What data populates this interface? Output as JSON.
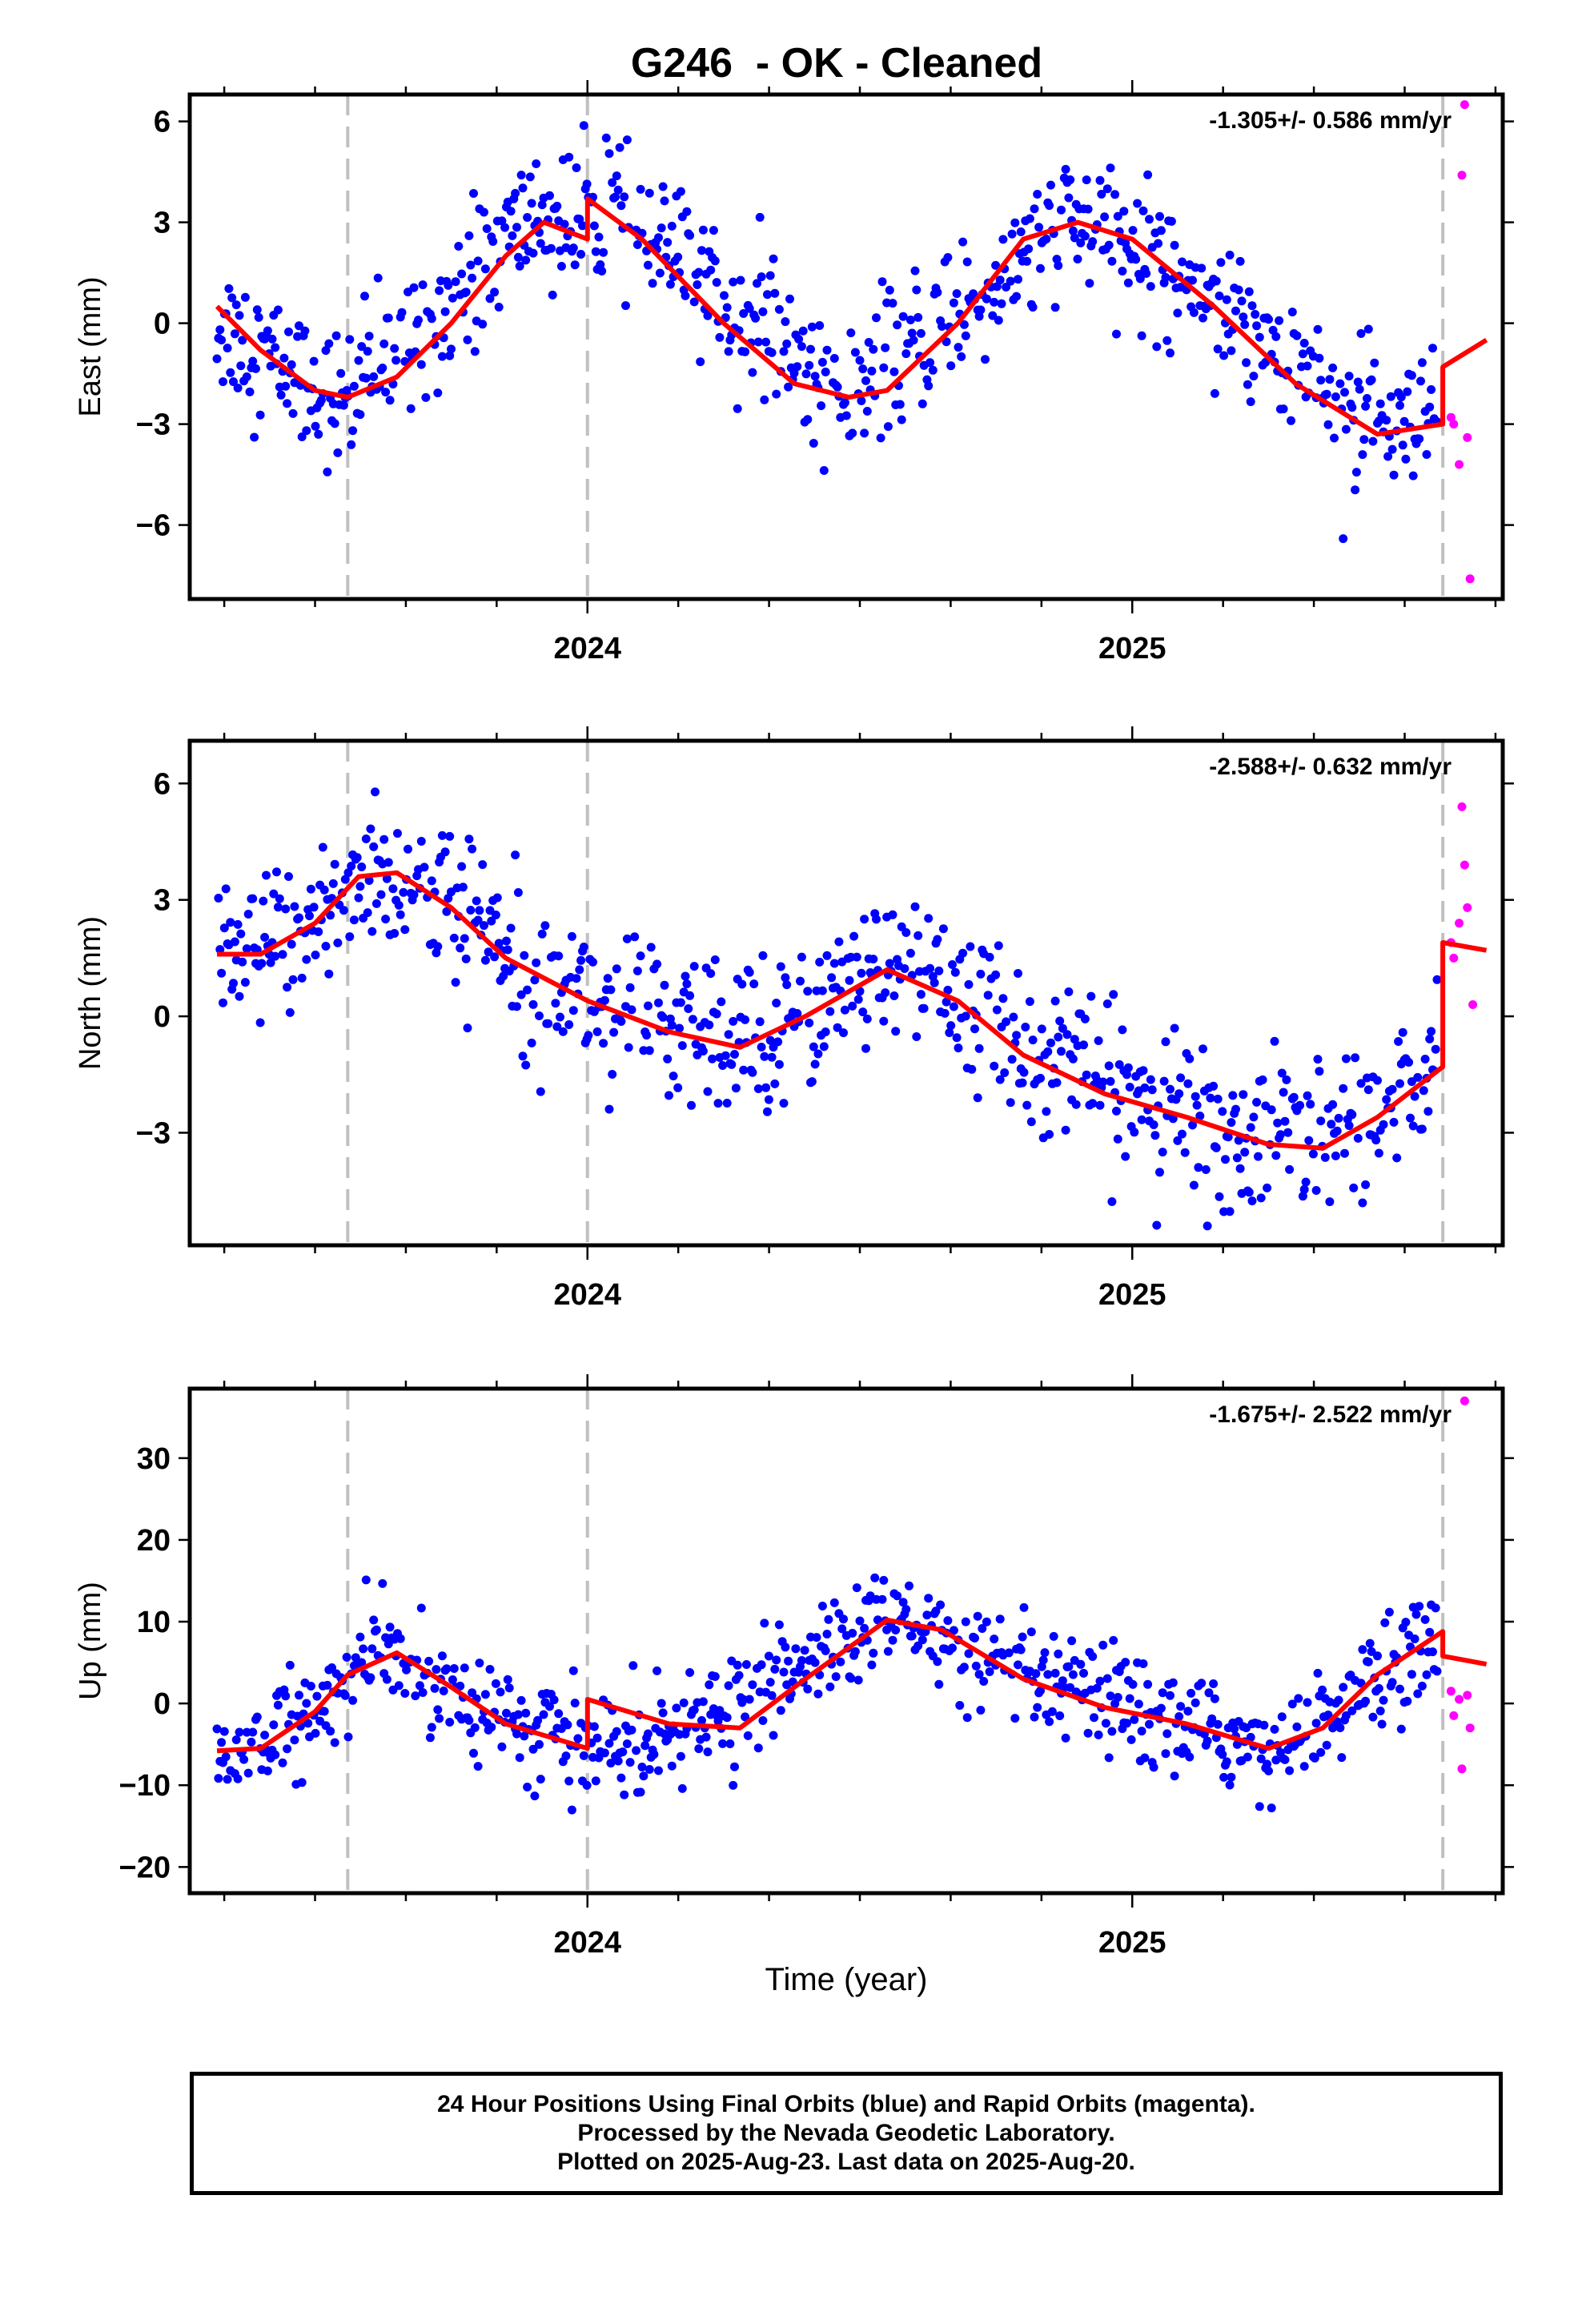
{
  "figure": {
    "title": "G246  - OK - Cleaned",
    "xlabel": "Time (year)",
    "colors": {
      "final": "#0000ff",
      "rapid": "#ff00ff",
      "model": "#ff0000",
      "steps": "#c0c0c0"
    }
  },
  "footer": {
    "line1": "24 Hour Positions Using Final Orbits (blue) and Rapid Orbits (magenta).",
    "line2": "Processed by the Nevada Geodetic Laboratory.",
    "line3": "Plotted on 2025-Aug-23. Last data on 2025-Aug-20."
  },
  "chart_data": [
    {
      "type": "scatter",
      "component": "east",
      "ylabel": "East (mm)",
      "rate_text": "-1.305+/- 0.586 mm/yr",
      "xlim": [
        2023.27,
        2025.68
      ],
      "ylim": [
        -8.2,
        6.8
      ],
      "yticks": [
        -6,
        -3,
        0,
        3,
        6
      ],
      "ytick_labels": [
        "−6",
        "−3",
        "0",
        "3",
        "6"
      ],
      "xticks": [
        2024,
        2025
      ],
      "xtick_labels": [
        "2024",
        "2025"
      ],
      "step_epochs": [
        2023.56,
        2024.0,
        2025.57
      ],
      "model": {
        "x": [
          2023.32,
          2023.4,
          2023.5,
          2023.56,
          2023.65,
          2023.75,
          2023.85,
          2023.92,
          2024.0,
          2024.0,
          2024.1,
          2024.25,
          2024.38,
          2024.48,
          2024.55,
          2024.68,
          2024.8,
          2024.9,
          2025.0,
          2025.15,
          2025.3,
          2025.45,
          2025.57,
          2025.57,
          2025.65
        ],
        "y": [
          0.5,
          -0.8,
          -2.0,
          -2.2,
          -1.6,
          0.0,
          2.0,
          3.0,
          2.5,
          3.7,
          2.5,
          0.0,
          -1.8,
          -2.2,
          -2.0,
          0.0,
          2.5,
          3.0,
          2.5,
          0.5,
          -1.8,
          -3.3,
          -3.0,
          -1.3,
          -0.5
        ]
      },
      "final_params": {
        "base": [
          [
            2023.32,
            0.0
          ],
          [
            2023.55,
            -2.4
          ],
          [
            2023.9,
            3.2
          ],
          [
            2024.0,
            2.8
          ],
          [
            2024.05,
            3.4
          ],
          [
            2024.48,
            -2.3
          ],
          [
            2024.88,
            3.0
          ],
          [
            2025.1,
            1.5
          ],
          [
            2025.47,
            -3.4
          ],
          [
            2025.56,
            -3.1
          ]
        ],
        "scatter": 1.2
      },
      "rapid": {
        "x": [
          2025.585,
          2025.59,
          2025.6,
          2025.605,
          2025.61,
          2025.615,
          2025.62
        ],
        "y": [
          -2.8,
          -3.0,
          -4.2,
          4.4,
          6.5,
          -3.4,
          -7.6
        ]
      }
    },
    {
      "type": "scatter",
      "component": "north",
      "ylabel": "North (mm)",
      "rate_text": "-2.588+/- 0.632 mm/yr",
      "xlim": [
        2023.27,
        2025.68
      ],
      "ylim": [
        -5.9,
        7.1
      ],
      "yticks": [
        -3,
        0,
        3,
        6
      ],
      "ytick_labels": [
        "−3",
        "0",
        "3",
        "6"
      ],
      "xticks": [
        2024,
        2025
      ],
      "xtick_labels": [
        "2024",
        "2025"
      ],
      "step_epochs": [
        2023.56,
        2024.0,
        2025.57
      ],
      "model": {
        "x": [
          2023.32,
          2023.4,
          2023.5,
          2023.58,
          2023.65,
          2023.75,
          2023.85,
          2024.0,
          2024.15,
          2024.28,
          2024.4,
          2024.55,
          2024.68,
          2024.8,
          2024.95,
          2025.1,
          2025.25,
          2025.35,
          2025.45,
          2025.57,
          2025.57,
          2025.65
        ],
        "y": [
          1.6,
          1.6,
          2.4,
          3.6,
          3.7,
          2.8,
          1.5,
          0.4,
          -0.4,
          -0.8,
          0.0,
          1.2,
          0.4,
          -1.0,
          -2.0,
          -2.6,
          -3.3,
          -3.4,
          -2.6,
          -1.3,
          1.9,
          1.7
        ]
      },
      "final_params": {
        "base": [
          [
            2023.32,
            1.2
          ],
          [
            2023.45,
            2.0
          ],
          [
            2023.62,
            3.8
          ],
          [
            2023.85,
            2.0
          ],
          [
            2024.0,
            0.5
          ],
          [
            2024.25,
            -0.8
          ],
          [
            2024.58,
            1.4
          ],
          [
            2024.85,
            -1.2
          ],
          [
            2025.2,
            -3.2
          ],
          [
            2025.45,
            -2.6
          ],
          [
            2025.56,
            -1.4
          ]
        ],
        "scatter": 1.15
      },
      "rapid": {
        "x": [
          2025.585,
          2025.59,
          2025.6,
          2025.605,
          2025.61,
          2025.615,
          2025.625
        ],
        "y": [
          1.9,
          1.5,
          2.4,
          5.4,
          3.9,
          2.8,
          0.3
        ]
      }
    },
    {
      "type": "scatter",
      "component": "up",
      "ylabel": "Up (mm)",
      "rate_text": "-1.675+/- 2.522 mm/yr",
      "xlim": [
        2023.27,
        2025.68
      ],
      "ylim": [
        -23.2,
        38.5
      ],
      "yticks": [
        -20,
        -10,
        0,
        10,
        20,
        30
      ],
      "ytick_labels": [
        "−20",
        "−10",
        "0",
        "10",
        "20",
        "30"
      ],
      "xticks": [
        2024,
        2025
      ],
      "xtick_labels": [
        "2024",
        "2025"
      ],
      "step_epochs": [
        2023.56,
        2024.0,
        2025.57
      ],
      "model": {
        "x": [
          2023.32,
          2023.4,
          2023.5,
          2023.56,
          2023.65,
          2023.75,
          2023.85,
          2024.0,
          2024.0,
          2024.15,
          2024.28,
          2024.4,
          2024.55,
          2024.65,
          2024.8,
          2024.95,
          2025.1,
          2025.25,
          2025.35,
          2025.45,
          2025.57,
          2025.57,
          2025.65
        ],
        "y": [
          -5.8,
          -5.5,
          -1.0,
          3.5,
          6.2,
          2.0,
          -2.5,
          -5.5,
          0.5,
          -2.5,
          -3.0,
          3.0,
          10.2,
          9.0,
          3.0,
          -0.5,
          -2.5,
          -5.5,
          -3.0,
          3.5,
          8.8,
          5.8,
          4.8
        ]
      },
      "final_params": {
        "base": [
          [
            2023.32,
            -6.0
          ],
          [
            2023.45,
            -4.0
          ],
          [
            2023.62,
            6.5
          ],
          [
            2023.85,
            -2.0
          ],
          [
            2024.0,
            -5.5
          ],
          [
            2024.2,
            -3.0
          ],
          [
            2024.55,
            10.5
          ],
          [
            2024.8,
            3.0
          ],
          [
            2025.0,
            -1.0
          ],
          [
            2025.25,
            -5.5
          ],
          [
            2025.4,
            0.0
          ],
          [
            2025.56,
            8.5
          ]
        ],
        "scatter": 3.6
      },
      "rapid": {
        "x": [
          2025.585,
          2025.59,
          2025.6,
          2025.605,
          2025.61,
          2025.615,
          2025.62
        ],
        "y": [
          1.5,
          -1.5,
          0.5,
          -8.0,
          37.0,
          1.0,
          -3.0
        ]
      }
    }
  ]
}
